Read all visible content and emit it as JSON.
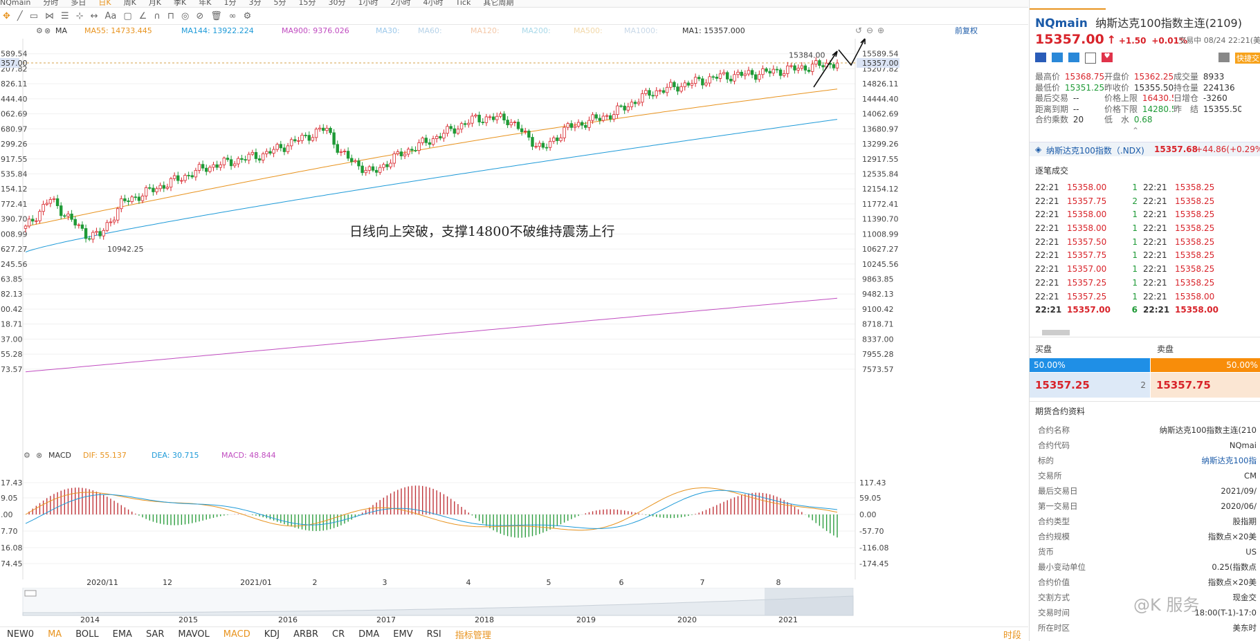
{
  "topbar": {
    "items": [
      "NQmain",
      "分时",
      "多日",
      "日K",
      "周K",
      "月K",
      "季K",
      "年K",
      "1分",
      "3分",
      "5分",
      "15分",
      "30分",
      "1小时",
      "2小时",
      "4小时",
      "Tick",
      "其它周期"
    ]
  },
  "toolbar": {
    "font_label": "Aa"
  },
  "main_chart": {
    "indicator_name": "MA",
    "legend": [
      {
        "label": "MA55: 14733.445",
        "color": "#e8931e"
      },
      {
        "label": "MA144: 13922.224",
        "color": "#1e9ad8"
      },
      {
        "label": "MA900: 9376.026",
        "color": "#c04cc0"
      },
      {
        "label": "MA30:",
        "color": "#9cc8ea"
      },
      {
        "label": "MA60:",
        "color": "#b6d2e8"
      },
      {
        "label": "MA120:",
        "color": "#f4c8a8"
      },
      {
        "label": "MA200:",
        "color": "#a8d8e8"
      },
      {
        "label": "MA500:",
        "color": "#f2d8a8"
      },
      {
        "label": "MA1000:",
        "color": "#c8d8e8"
      },
      {
        "label": "MA1: 15357.000",
        "color": "#333333"
      }
    ],
    "adjust_label": "前复权",
    "price_ticks": [
      "15589.54",
      "15207.82",
      "14826.11",
      "14444.40",
      "14062.69",
      "13680.97",
      "13299.26",
      "12917.55",
      "12535.84",
      "12154.12",
      "11772.41",
      "11390.70",
      "11008.99",
      "10627.27",
      "10245.56",
      "9863.85",
      "9482.13",
      "9100.42",
      "8718.71",
      "8337.00",
      "7955.28",
      "7573.57"
    ],
    "current_price_tag": "15357.00",
    "high_label": "15384.00",
    "low_label": "10942.25",
    "annotation": "日线向上突破，支撑14800不破维持震荡上行"
  },
  "chart_data": {
    "type": "candlestick",
    "price_axis_range": [
      7430,
      15690
    ],
    "candles_approx": "daily Nasdaq-100 futures, Oct 2020 to Aug 2021",
    "key_points": {
      "start_close": 11150,
      "low": 10942.25,
      "high": 15384.0,
      "last": 15357.0
    },
    "ma55_range": [
      11200,
      14733.445
    ],
    "ma144_range": [
      10550,
      13922.224
    ],
    "ma900_range": [
      7505,
      9376.026
    ],
    "macd": {
      "dif": 55.137,
      "dea": 30.715,
      "macd": 48.844,
      "ticks": [
        "117.43",
        "59.05",
        "0.00",
        "-57.70",
        "-116.08",
        "-174.45"
      ]
    }
  },
  "macd_chart": {
    "indicator_name": "MACD",
    "legend": [
      {
        "label": "DIF: 55.137",
        "color": "#e8931e"
      },
      {
        "label": "DEA: 30.715",
        "color": "#1e9ad8"
      },
      {
        "label": "MACD: 48.844",
        "color": "#c04cc0"
      }
    ]
  },
  "x_axis": {
    "labels": [
      "2020/11",
      "12",
      "2021/01",
      "2",
      "3",
      "4",
      "5",
      "6",
      "7",
      "8"
    ]
  },
  "timeline": {
    "years": [
      "2014",
      "2015",
      "2016",
      "2017",
      "2018",
      "2019",
      "2020",
      "2021"
    ]
  },
  "indicator_tabs": {
    "items": [
      "NEW0",
      "MA",
      "BOLL",
      "EMA",
      "SAR",
      "MAVOL",
      "MACD",
      "KDJ",
      "ARBR",
      "CR",
      "DMA",
      "EMV",
      "RSI",
      "指标管理"
    ],
    "right": "时段"
  },
  "quote": {
    "symbol": "NQmain",
    "name": "纳斯达克100指数主连(2109)",
    "price": "15357.00",
    "change": "+1.50",
    "change_pct": "+0.01%",
    "trade_time": "交易中 08/24 22:21(美",
    "quick_trade": "快捷交",
    "stats": [
      [
        {
          "k": "最高价",
          "v": "15368.75",
          "c": "red"
        },
        {
          "k": "开盘价",
          "v": "15362.25",
          "c": "red"
        },
        {
          "k": "成交量",
          "v": "8933",
          "c": ""
        }
      ],
      [
        {
          "k": "最低价",
          "v": "15351.25",
          "c": "green"
        },
        {
          "k": "昨收价",
          "v": "15355.50",
          "c": ""
        },
        {
          "k": "持仓量",
          "v": "224136",
          "c": ""
        }
      ],
      [
        {
          "k": "最后交易",
          "v": "--",
          "c": ""
        },
        {
          "k": "价格上限",
          "v": "16430.50",
          "c": "red"
        },
        {
          "k": "日增仓",
          "v": "-3260",
          "c": ""
        }
      ],
      [
        {
          "k": "距离到期",
          "v": "--",
          "c": ""
        },
        {
          "k": "价格下限",
          "v": "14280.50",
          "c": "green"
        },
        {
          "k": "昨　结",
          "v": "15355.50",
          "c": ""
        }
      ],
      [
        {
          "k": "合约乘数",
          "v": "20",
          "c": ""
        },
        {
          "k": "低　水",
          "v": "0.68",
          "c": "green"
        },
        {
          "k": "",
          "v": "",
          "c": ""
        }
      ]
    ],
    "index_row": {
      "name": "纳斯达克100指数（.NDX)",
      "price": "15357.68",
      "change": "+44.86(+0.29%"
    }
  },
  "trades": {
    "title": "逐笔成交",
    "rows": [
      [
        "22:21",
        "15358.00",
        "1",
        "22:21",
        "15358.25"
      ],
      [
        "22:21",
        "15357.75",
        "2",
        "22:21",
        "15358.25"
      ],
      [
        "22:21",
        "15358.00",
        "1",
        "22:21",
        "15358.25"
      ],
      [
        "22:21",
        "15358.00",
        "1",
        "22:21",
        "15358.25"
      ],
      [
        "22:21",
        "15357.50",
        "1",
        "22:21",
        "15358.25"
      ],
      [
        "22:21",
        "15357.75",
        "1",
        "22:21",
        "15358.25"
      ],
      [
        "22:21",
        "15357.00",
        "1",
        "22:21",
        "15358.25"
      ],
      [
        "22:21",
        "15357.25",
        "1",
        "22:21",
        "15358.25"
      ],
      [
        "22:21",
        "15357.25",
        "1",
        "22:21",
        "15358.00"
      ],
      [
        "22:21",
        "15357.00",
        "6",
        "22:21",
        "15358.00"
      ]
    ]
  },
  "orderbook": {
    "buy_label": "买盘",
    "sell_label": "卖盘",
    "buy_pct": "50.00%",
    "sell_pct": "50.00%",
    "bid_price": "15357.25",
    "bid_size": "2",
    "ask_price": "15357.75"
  },
  "contract_info": {
    "title": "期货合约资料",
    "rows": [
      [
        "合约名称",
        "纳斯达克100指数主连(210"
      ],
      [
        "合约代码",
        "NQmai"
      ],
      [
        "标的",
        "纳斯达克100指"
      ],
      [
        "交易所",
        "CM"
      ],
      [
        "最后交易日",
        "2021/09/"
      ],
      [
        "第一交易日",
        "2020/06/"
      ],
      [
        "合约类型",
        "股指期"
      ],
      [
        "合约规模",
        "指数点×20美"
      ],
      [
        "货币",
        "US"
      ],
      [
        "最小变动单位",
        "0.25(指数点"
      ],
      [
        "合约价值",
        "指数点×20美"
      ],
      [
        "交割方式",
        "现金交"
      ],
      [
        "交易时间",
        "18:00(T-1)-17:0"
      ],
      [
        "所在时区",
        "美东时"
      ]
    ]
  },
  "watermark": "@K 服务"
}
